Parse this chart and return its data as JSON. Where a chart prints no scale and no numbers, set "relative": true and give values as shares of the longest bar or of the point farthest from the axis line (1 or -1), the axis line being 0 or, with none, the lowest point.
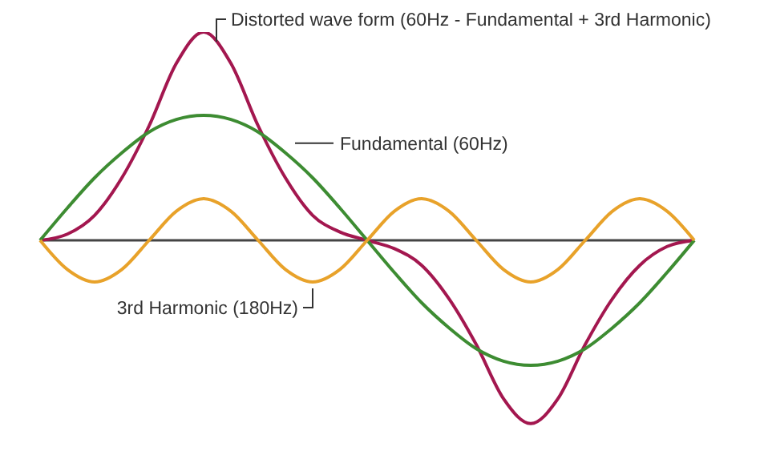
{
  "chart_data": {
    "type": "line",
    "relative": true,
    "categories": [
      null,
      null,
      null,
      null,
      null,
      null,
      null,
      null,
      null,
      null,
      null,
      null,
      null,
      null,
      null,
      null,
      null,
      null,
      null,
      null,
      null,
      null,
      null,
      null,
      null
    ],
    "series": [
      {
        "name": "Distorted wave form (60Hz - Fundamental + 3rd Harmonic)",
        "color": "#a3174f",
        "values": [
          0,
          0.03,
          0.12,
          0.3,
          0.55,
          0.85,
          1,
          0.85,
          0.55,
          0.3,
          0.12,
          0.04,
          0,
          -0.04,
          -0.12,
          -0.28,
          -0.5,
          -0.76,
          -0.88,
          -0.76,
          -0.5,
          -0.28,
          -0.12,
          -0.03,
          0
        ]
      },
      {
        "name": "Fundamental (60Hz)",
        "color": "#3d8c32",
        "values": [
          0,
          0.155,
          0.3,
          0.42,
          0.52,
          0.58,
          0.6,
          0.58,
          0.52,
          0.42,
          0.3,
          0.155,
          0,
          -0.155,
          -0.3,
          -0.42,
          -0.52,
          -0.58,
          -0.6,
          -0.58,
          -0.52,
          -0.42,
          -0.3,
          -0.155,
          0
        ]
      },
      {
        "name": "3rd Harmonic (180Hz)",
        "color": "#e8a22a",
        "values": [
          0,
          -0.14,
          -0.2,
          -0.14,
          0,
          0.14,
          0.2,
          0.14,
          0,
          -0.14,
          -0.2,
          -0.14,
          0,
          0.14,
          0.2,
          0.14,
          0,
          -0.14,
          -0.2,
          -0.14,
          0,
          0.14,
          0.2,
          0.14,
          0
        ]
      }
    ]
  }
}
